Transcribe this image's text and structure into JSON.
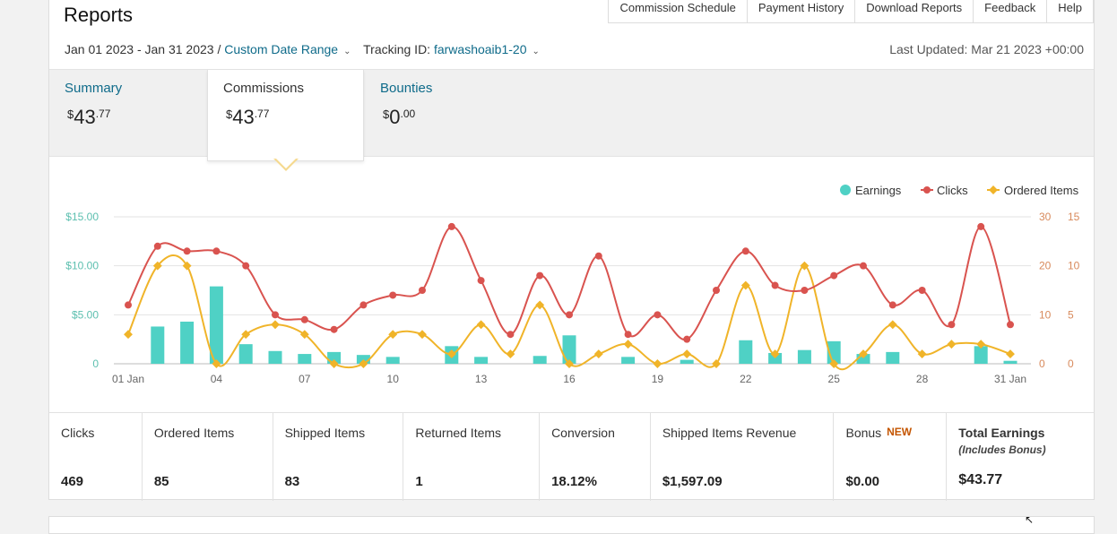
{
  "header": {
    "title": "Reports",
    "links": [
      "Commission Schedule",
      "Payment History",
      "Download Reports",
      "Feedback",
      "Help"
    ],
    "date_range": "Jan 01 2023 - Jan 31 2023",
    "date_sep": "/",
    "date_picker": "Custom Date Range",
    "tracking_label": "Tracking ID:",
    "tracking_id": "farwashoaib1-20",
    "last_updated": "Last Updated: Mar 21 2023 +00:00"
  },
  "tabs": [
    {
      "label": "Summary",
      "currency": "$",
      "whole": "43",
      "cents": ".77"
    },
    {
      "label": "Commissions",
      "currency": "$",
      "whole": "43",
      "cents": ".77"
    },
    {
      "label": "Bounties",
      "currency": "$",
      "whole": "0",
      "cents": ".00"
    }
  ],
  "chart_data": {
    "type": "bar",
    "legend": [
      "Earnings",
      "Clicks",
      "Ordered Items"
    ],
    "colors": {
      "earnings": "#4fd1c5",
      "clicks": "#d9534f",
      "ordered": "#f0b429",
      "left_axis": "#5cbfaf",
      "right_axis": "#d88a5c"
    },
    "x_labels": [
      "01 Jan",
      "04",
      "07",
      "10",
      "13",
      "16",
      "19",
      "22",
      "25",
      "28",
      "31 Jan"
    ],
    "left_ticks": [
      "$15.00",
      "$10.00",
      "$5.00",
      "0"
    ],
    "right_ticks_clicks": [
      "30",
      "20",
      "10",
      "0"
    ],
    "right_ticks_items": [
      "15",
      "10",
      "5",
      "0"
    ],
    "earnings_ylim": [
      0,
      15
    ],
    "clicks_ylim": [
      0,
      30
    ],
    "ordered_ylim": [
      0,
      15
    ],
    "days": [
      1,
      2,
      3,
      4,
      5,
      6,
      7,
      8,
      9,
      10,
      11,
      12,
      13,
      14,
      15,
      16,
      17,
      18,
      19,
      20,
      21,
      22,
      23,
      24,
      25,
      26,
      27,
      28,
      29,
      30,
      31
    ],
    "earnings": [
      0,
      3.8,
      4.3,
      7.9,
      2.0,
      1.3,
      1.0,
      1.2,
      0.9,
      0.7,
      0,
      1.8,
      0.7,
      0,
      0.8,
      2.9,
      0,
      0.7,
      0,
      0.4,
      0,
      2.4,
      1.1,
      1.4,
      2.3,
      1.0,
      1.2,
      0,
      0,
      1.8,
      0.3
    ],
    "clicks": [
      12,
      24,
      23,
      23,
      20,
      10,
      9,
      7,
      12,
      14,
      15,
      28,
      17,
      6,
      18,
      10,
      22,
      6,
      10,
      5,
      15,
      23,
      16,
      15,
      18,
      20,
      12,
      15,
      8,
      28,
      8
    ],
    "ordered": [
      3,
      10,
      10,
      0,
      3,
      4,
      3,
      0,
      0,
      3,
      3,
      1,
      4,
      1,
      6,
      0,
      1,
      2,
      0,
      1,
      0,
      8,
      1,
      10,
      0,
      1,
      4,
      1,
      2,
      2,
      1
    ]
  },
  "stats": [
    {
      "label": "Clicks",
      "value": "469"
    },
    {
      "label": "Ordered Items",
      "value": "85"
    },
    {
      "label": "Shipped Items",
      "value": "83"
    },
    {
      "label": "Returned Items",
      "value": "1"
    },
    {
      "label": "Conversion",
      "value": "18.12%"
    },
    {
      "label": "Shipped Items Revenue",
      "value": "$1,597.09"
    },
    {
      "label": "Bonus",
      "badge": "NEW",
      "value": "$0.00"
    },
    {
      "label": "Total Earnings",
      "sub": "(Includes Bonus)",
      "value": "$43.77"
    }
  ],
  "icons": {
    "caret": "chevron-down-icon",
    "cursor": "mouse-cursor-icon"
  }
}
